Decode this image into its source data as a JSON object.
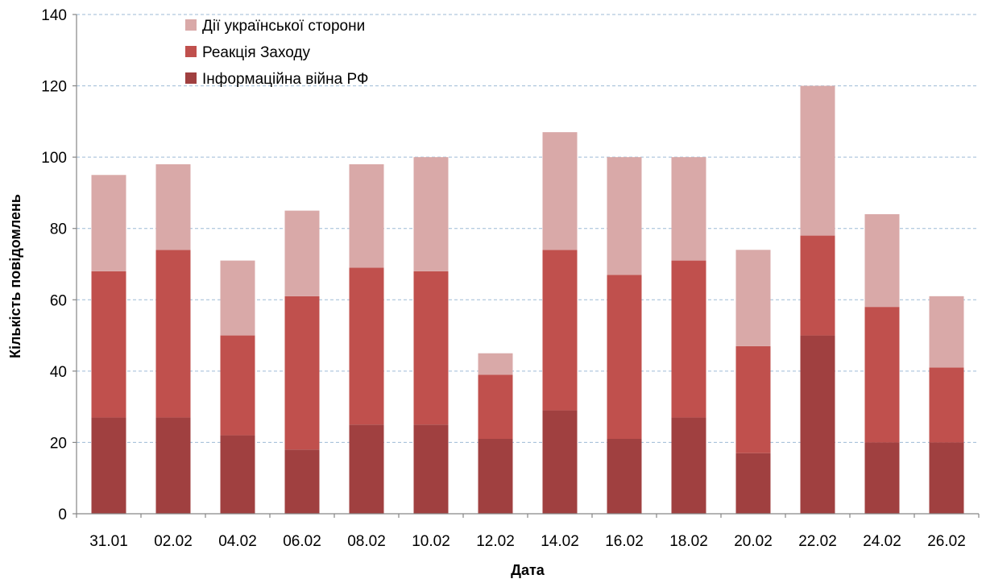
{
  "chart_data": {
    "type": "bar",
    "stacked": true,
    "title": "",
    "xlabel": "Дата",
    "ylabel": "Кількість повідомлень",
    "ylim": [
      0,
      140
    ],
    "yticks": [
      "0",
      "20",
      "40",
      "60",
      "80",
      "100",
      "120",
      "140"
    ],
    "grid": true,
    "legend_position": "top-left",
    "categories": [
      "31.01",
      "02.02",
      "04.02",
      "06.02",
      "08.02",
      "10.02",
      "12.02",
      "14.02",
      "16.02",
      "18.02",
      "20.02",
      "22.02",
      "24.02",
      "26.02"
    ],
    "series": [
      {
        "name": "Інформаційна війна РФ",
        "color": "#a04040",
        "values": [
          27,
          27,
          22,
          18,
          25,
          25,
          21,
          29,
          21,
          27,
          17,
          50,
          20,
          20
        ]
      },
      {
        "name": "Реакція Заходу",
        "color": "#c0504d",
        "values": [
          41,
          47,
          28,
          43,
          44,
          43,
          18,
          45,
          46,
          44,
          30,
          28,
          38,
          21
        ]
      },
      {
        "name": "Дії української сторони",
        "color": "#d9a9a8",
        "values": [
          27,
          24,
          21,
          24,
          29,
          32,
          6,
          33,
          33,
          29,
          27,
          42,
          26,
          20
        ]
      }
    ],
    "legend_order": [
      "Дії української сторони",
      "Реакція Заходу",
      "Інформаційна війна РФ"
    ]
  }
}
